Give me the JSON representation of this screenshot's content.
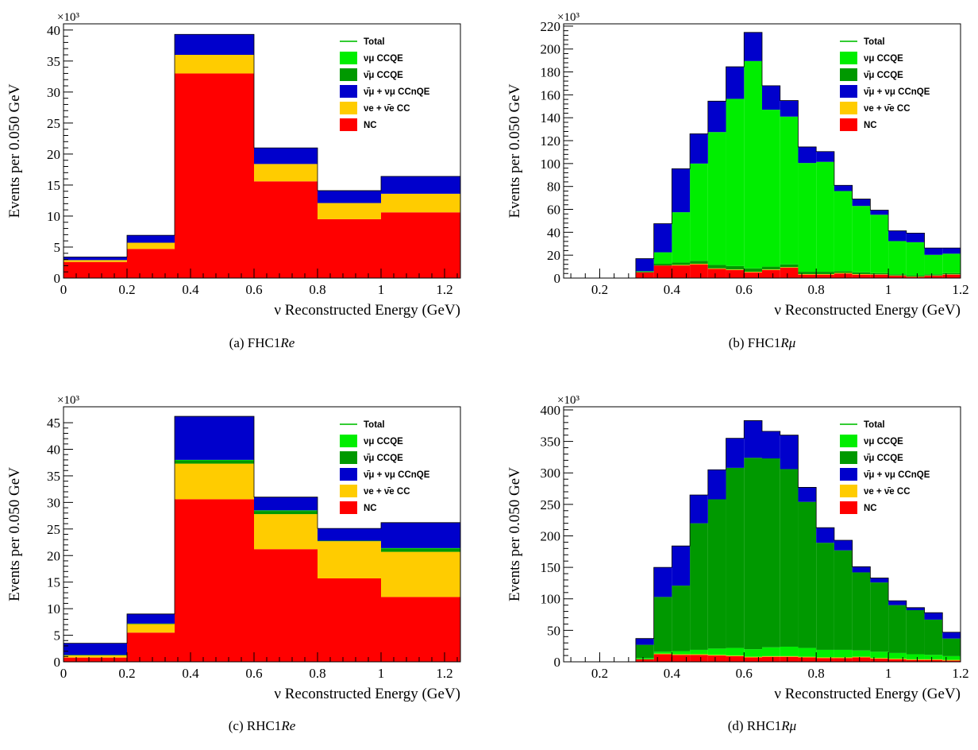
{
  "colors": {
    "NC": "#ff0000",
    "nue_CC": "#ffcc00",
    "CCnQE": "#0000cc",
    "anumu_CCQE": "#009900",
    "numu_CCQE": "#00ee00",
    "Total": "#33cc33"
  },
  "legend_labels": {
    "total": "Total",
    "numu_ccqe": "νμ CCQE",
    "anumu_ccqe": "ν̄μ CCQE",
    "ccnqe": "ν̄μ + νμ CCnQE",
    "nue_cc": "νe + ν̄e CC",
    "nc": "NC"
  },
  "captions": [
    {
      "prefix": "(a) FHC1",
      "italic": "Re"
    },
    {
      "prefix": "(b) FHC1",
      "italic": "Rμ"
    },
    {
      "prefix": "(c) RHC1",
      "italic": "Re"
    },
    {
      "prefix": "(d) RHC1",
      "italic": "Rμ"
    }
  ],
  "chart_data": [
    {
      "type": "bar",
      "stacked": true,
      "xlabel": "ν Reconstructed Energy (GeV)",
      "ylabel": "Events per 0.050 GeV",
      "yexponent": "×10³",
      "xlim": [
        0,
        1.25
      ],
      "ylim": [
        0,
        41
      ],
      "xticks": [
        0,
        0.2,
        0.4,
        0.6,
        0.8,
        1,
        1.2
      ],
      "xticklabels": [
        "0",
        "0.2",
        "0.4",
        "0.6",
        "0.8",
        "1",
        "1.2"
      ],
      "yticks": [
        0,
        5,
        10,
        15,
        20,
        25,
        30,
        35,
        40
      ],
      "yticklabels": [
        "0",
        "5",
        "10",
        "15",
        "20",
        "25",
        "30",
        "35",
        "40"
      ],
      "legend_position": "top-right",
      "bin_edges": [
        0,
        0.2,
        0.35,
        0.6,
        0.8,
        1.0,
        1.25
      ],
      "series": [
        {
          "key": "NC",
          "values": [
            2.6,
            4.7,
            33.0,
            15.6,
            9.5,
            10.6
          ]
        },
        {
          "key": "nue_CC",
          "values": [
            0.3,
            1.0,
            3.0,
            2.8,
            2.6,
            3.0
          ]
        },
        {
          "key": "CCnQE",
          "values": [
            0.5,
            1.2,
            3.3,
            2.6,
            2.0,
            2.8
          ]
        },
        {
          "key": "anumu_CCQE",
          "values": [
            0.0,
            0.0,
            0.0,
            0.0,
            0.0,
            0.0
          ]
        },
        {
          "key": "numu_CCQE",
          "values": [
            0.0,
            0.0,
            0.0,
            0.0,
            0.0,
            0.0
          ]
        }
      ]
    },
    {
      "type": "bar",
      "stacked": true,
      "xlabel": "ν Reconstructed Energy (GeV)",
      "ylabel": "Events per 0.050 GeV",
      "yexponent": "×10³",
      "xlim": [
        0.1,
        1.2
      ],
      "ylim": [
        0,
        222
      ],
      "xticks": [
        0.2,
        0.4,
        0.6,
        0.8,
        1,
        1.2
      ],
      "xticklabels": [
        "0.2",
        "0.4",
        "0.6",
        "0.8",
        "1",
        "1.2"
      ],
      "yticks": [
        0,
        20,
        40,
        60,
        80,
        100,
        120,
        140,
        160,
        180,
        200,
        220
      ],
      "yticklabels": [
        "0",
        "20",
        "40",
        "60",
        "80",
        "100",
        "120",
        "140",
        "160",
        "180",
        "200",
        "220"
      ],
      "legend_position": "top-right",
      "bin_edges": [
        0.1,
        0.15,
        0.2,
        0.25,
        0.3,
        0.35,
        0.4,
        0.45,
        0.5,
        0.55,
        0.6,
        0.65,
        0.7,
        0.75,
        0.8,
        0.85,
        0.9,
        0.95,
        1.0,
        1.05,
        1.1,
        1.15,
        1.2
      ],
      "series": [
        {
          "key": "NC",
          "values": [
            0,
            0,
            0,
            0,
            5,
            11,
            11,
            12,
            8,
            7,
            5,
            7,
            9,
            3,
            3,
            4,
            3,
            3,
            2,
            1,
            2,
            3
          ]
        },
        {
          "key": "nue_CC",
          "values": [
            0,
            0,
            0,
            0,
            0,
            0,
            0.5,
            0.5,
            0.5,
            0.5,
            0.5,
            0.5,
            0.5,
            0.5,
            0.5,
            0.5,
            0.5,
            0.3,
            0.3,
            0.3,
            0.3,
            0.3
          ]
        },
        {
          "key": "anumu_CCQE",
          "values": [
            0,
            0,
            0,
            0,
            0.5,
            1.5,
            2,
            2.5,
            3,
            3,
            3,
            2.5,
            2.5,
            2,
            2,
            1.5,
            1.5,
            1,
            1,
            1,
            1,
            1
          ]
        },
        {
          "key": "numu_CCQE",
          "values": [
            0,
            0,
            0,
            0,
            0.5,
            10,
            44,
            85,
            116,
            146,
            181,
            137,
            129,
            95,
            96,
            70,
            58,
            51,
            29,
            29,
            17,
            17
          ]
        },
        {
          "key": "CCnQE",
          "values": [
            0,
            0,
            0,
            0,
            11,
            25,
            38,
            26,
            27,
            28,
            25,
            21,
            14,
            14,
            9,
            5,
            6,
            4,
            9,
            8,
            6,
            5
          ]
        }
      ]
    },
    {
      "type": "bar",
      "stacked": true,
      "xlabel": "ν Reconstructed Energy (GeV)",
      "ylabel": "Events per 0.050 GeV",
      "yexponent": "×10³",
      "xlim": [
        0,
        1.25
      ],
      "ylim": [
        0,
        48
      ],
      "xticks": [
        0,
        0.2,
        0.4,
        0.6,
        0.8,
        1,
        1.2
      ],
      "xticklabels": [
        "0",
        "0.2",
        "0.4",
        "0.6",
        "0.8",
        "1",
        "1.2"
      ],
      "yticks": [
        0,
        5,
        10,
        15,
        20,
        25,
        30,
        35,
        40,
        45
      ],
      "yticklabels": [
        "0",
        "5",
        "10",
        "15",
        "20",
        "25",
        "30",
        "35",
        "40",
        "45"
      ],
      "legend_position": "top-right",
      "bin_edges": [
        0,
        0.2,
        0.35,
        0.6,
        0.8,
        1.0,
        1.25
      ],
      "series": [
        {
          "key": "NC",
          "values": [
            0.8,
            5.5,
            30.6,
            21.2,
            15.7,
            12.2
          ]
        },
        {
          "key": "nue_CC",
          "values": [
            0.4,
            1.6,
            6.7,
            6.6,
            7.0,
            8.5
          ]
        },
        {
          "key": "anumu_CCQE",
          "values": [
            0.1,
            0.1,
            0.6,
            0.6,
            0.1,
            0.6
          ]
        },
        {
          "key": "numu_CCQE",
          "values": [
            0.0,
            0.0,
            0.1,
            0.1,
            0.0,
            0.1
          ]
        },
        {
          "key": "CCnQE",
          "values": [
            2.2,
            1.8,
            8.2,
            2.5,
            2.3,
            4.8
          ]
        }
      ]
    },
    {
      "type": "bar",
      "stacked": true,
      "xlabel": "ν Reconstructed Energy (GeV)",
      "ylabel": "Events per 0.050 GeV",
      "yexponent": "×10³",
      "xlim": [
        0.1,
        1.2
      ],
      "ylim": [
        0,
        405
      ],
      "xticks": [
        0.2,
        0.4,
        0.6,
        0.8,
        1,
        1.2
      ],
      "xticklabels": [
        "0.2",
        "0.4",
        "0.6",
        "0.8",
        "1",
        "1.2"
      ],
      "yticks": [
        0,
        50,
        100,
        150,
        200,
        250,
        300,
        350,
        400
      ],
      "yticklabels": [
        "0",
        "50",
        "100",
        "150",
        "200",
        "250",
        "300",
        "350",
        "400"
      ],
      "legend_position": "top-right",
      "bin_edges": [
        0.1,
        0.15,
        0.2,
        0.25,
        0.3,
        0.35,
        0.4,
        0.45,
        0.5,
        0.55,
        0.6,
        0.65,
        0.7,
        0.75,
        0.8,
        0.85,
        0.9,
        0.95,
        1.0,
        1.05,
        1.1,
        1.15,
        1.2
      ],
      "series": [
        {
          "key": "NC",
          "values": [
            0,
            0,
            0,
            0,
            4,
            12,
            11,
            11,
            10,
            9,
            7,
            8,
            8,
            7,
            6,
            6,
            7,
            5,
            4,
            3,
            3,
            2
          ]
        },
        {
          "key": "nue_CC",
          "values": [
            0,
            0,
            0,
            0,
            0,
            1,
            1,
            1,
            1,
            1,
            1,
            1,
            1,
            1,
            1,
            1,
            1,
            1,
            1,
            1,
            1,
            1
          ]
        },
        {
          "key": "numu_CCQE",
          "values": [
            0,
            0,
            0,
            0,
            2,
            3,
            5,
            7,
            10,
            12,
            12,
            14,
            15,
            14,
            12,
            12,
            10,
            10,
            9,
            8,
            7,
            6
          ]
        },
        {
          "key": "anumu_CCQE",
          "values": [
            0,
            0,
            0,
            0,
            21,
            87,
            104,
            201,
            237,
            286,
            304,
            300,
            282,
            232,
            170,
            158,
            124,
            110,
            76,
            70,
            56,
            28
          ]
        },
        {
          "key": "CCnQE",
          "values": [
            0,
            0,
            0,
            0,
            10,
            47,
            63,
            45,
            47,
            47,
            59,
            43,
            54,
            23,
            24,
            16,
            9,
            7,
            7,
            4,
            11,
            10
          ]
        }
      ]
    }
  ]
}
